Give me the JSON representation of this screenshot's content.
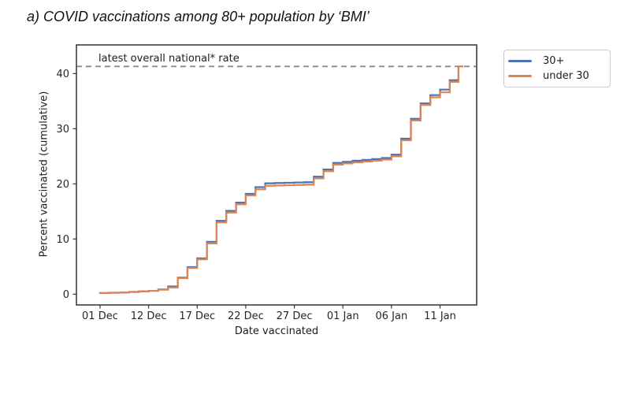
{
  "title": "a) COVID vaccinations among 80+ population by ‘BMI’",
  "chart_data": {
    "type": "line",
    "subtype": "step-post",
    "title": "a) COVID vaccinations among 80+ population by ‘BMI’",
    "xlabel": "Date vaccinated",
    "ylabel": "Percent vaccinated (cumulative)",
    "grid": false,
    "legend_position": "outside-top-right",
    "xlim": [
      -2.43,
      38.77
    ],
    "ylim": [
      -1.96,
      45.2
    ],
    "x_unit": "date-index",
    "x_tick_positions": [
      0,
      5,
      10,
      15,
      20,
      25,
      30,
      35
    ],
    "x_tick_labels": [
      "01 Dec",
      "12 Dec",
      "17 Dec",
      "22 Dec",
      "27 Dec",
      "01 Jan",
      "06 Jan",
      "11 Jan"
    ],
    "y_ticks": [
      0,
      10,
      20,
      30,
      40
    ],
    "reference_line": {
      "y": 41.3,
      "label": "latest overall national* rate",
      "style": "dashed",
      "color": "#8c8c8c"
    },
    "series": [
      {
        "name": "30+",
        "color": "#4C72B0",
        "points": [
          [
            0,
            0.2
          ],
          [
            1,
            0.25
          ],
          [
            2,
            0.3
          ],
          [
            3,
            0.4
          ],
          [
            4,
            0.5
          ],
          [
            5,
            0.6
          ],
          [
            6,
            0.85
          ],
          [
            7,
            1.4
          ],
          [
            8,
            3.0
          ],
          [
            9,
            4.9
          ],
          [
            10,
            6.5
          ],
          [
            11,
            9.5
          ],
          [
            12,
            13.3
          ],
          [
            13,
            15.1
          ],
          [
            14,
            16.6
          ],
          [
            15,
            18.2
          ],
          [
            16,
            19.4
          ],
          [
            17,
            20.1
          ],
          [
            18,
            20.15
          ],
          [
            19,
            20.2
          ],
          [
            20,
            20.25
          ],
          [
            21,
            20.3
          ],
          [
            22,
            21.3
          ],
          [
            23,
            22.6
          ],
          [
            24,
            23.8
          ],
          [
            25,
            24.0
          ],
          [
            26,
            24.2
          ],
          [
            27,
            24.35
          ],
          [
            28,
            24.5
          ],
          [
            29,
            24.7
          ],
          [
            30,
            25.3
          ],
          [
            31,
            28.2
          ],
          [
            32,
            31.8
          ],
          [
            33,
            34.6
          ],
          [
            34,
            36.1
          ],
          [
            35,
            37.1
          ],
          [
            36,
            38.8
          ],
          [
            36.9,
            41.3
          ],
          [
            37.3,
            41.3
          ]
        ]
      },
      {
        "name": "under 30",
        "color": "#DD8452",
        "points": [
          [
            0,
            0.2
          ],
          [
            1,
            0.25
          ],
          [
            2,
            0.3
          ],
          [
            3,
            0.4
          ],
          [
            4,
            0.5
          ],
          [
            5,
            0.6
          ],
          [
            6,
            0.8
          ],
          [
            7,
            1.2
          ],
          [
            8,
            2.9
          ],
          [
            9,
            4.75
          ],
          [
            10,
            6.3
          ],
          [
            11,
            9.2
          ],
          [
            12,
            13.0
          ],
          [
            13,
            14.8
          ],
          [
            14,
            16.3
          ],
          [
            15,
            17.9
          ],
          [
            16,
            19.0
          ],
          [
            17,
            19.65
          ],
          [
            18,
            19.7
          ],
          [
            19,
            19.75
          ],
          [
            20,
            19.8
          ],
          [
            21,
            19.85
          ],
          [
            22,
            21.0
          ],
          [
            23,
            22.3
          ],
          [
            24,
            23.5
          ],
          [
            25,
            23.7
          ],
          [
            26,
            23.9
          ],
          [
            27,
            24.05
          ],
          [
            28,
            24.2
          ],
          [
            29,
            24.4
          ],
          [
            30,
            25.0
          ],
          [
            31,
            27.9
          ],
          [
            32,
            31.5
          ],
          [
            33,
            34.3
          ],
          [
            34,
            35.7
          ],
          [
            35,
            36.6
          ],
          [
            36,
            38.5
          ],
          [
            36.9,
            41.3
          ],
          [
            37.3,
            41.3
          ]
        ]
      }
    ],
    "frame_color": "#333333",
    "tick_text_color": "#262626"
  }
}
